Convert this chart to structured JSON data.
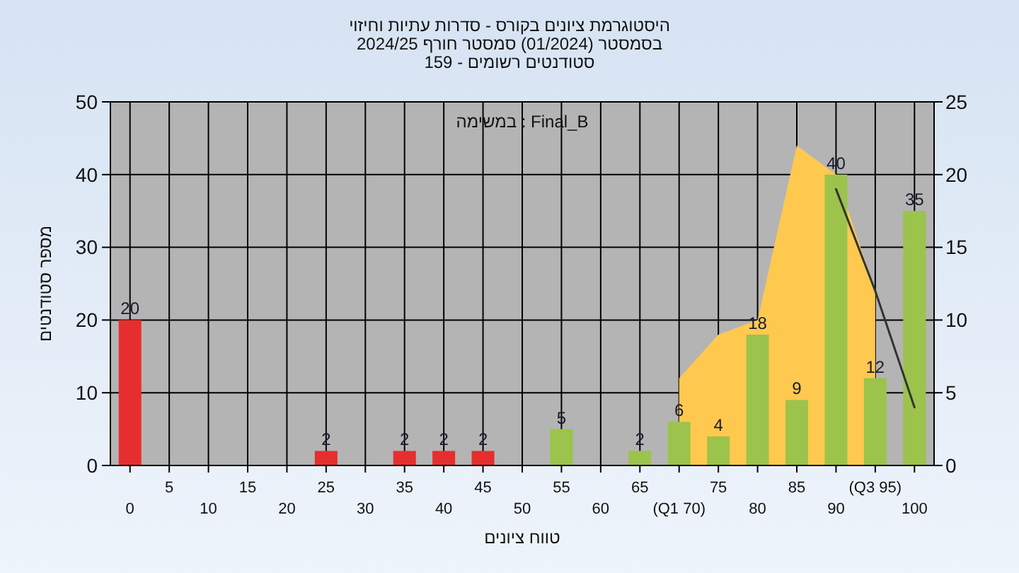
{
  "chart_data": {
    "type": "bar",
    "title": "היסטוגרמת ציונים בקורס - סדרות עתיות וחיזוי",
    "subtitle": "בסמסטר  (01/2024)  סמסטר חורף 2024/25\nסטודנטים רשומים - 159",
    "xlabel": "טווח ציונים",
    "ylabel": "מספר סטודנטים",
    "annotations": [
      "Final_B : במשימה"
    ],
    "categories": [
      "0",
      "5",
      "10",
      "15",
      "20",
      "25",
      "30",
      "35",
      "40",
      "45",
      "50",
      "55",
      "60",
      "65",
      "(Q1 70)",
      "75",
      "80",
      "85",
      "90",
      "(Q3 95)",
      "100"
    ],
    "series": [
      {
        "type": "area",
        "axis": "y2",
        "color": "#ffc94f",
        "values": [
          null,
          null,
          null,
          null,
          null,
          null,
          null,
          null,
          null,
          null,
          null,
          null,
          null,
          null,
          6,
          9,
          10,
          22,
          20,
          12,
          null
        ]
      },
      {
        "value_labels": [
          "20",
          null,
          null,
          null,
          null,
          "2",
          null,
          "2",
          "2",
          "2",
          null,
          "5",
          null,
          "2",
          "6",
          "4",
          "18",
          "9",
          "40",
          "12",
          "35"
        ],
        "colors": [
          "#e62e2e",
          null,
          null,
          null,
          null,
          "#e62e2e",
          null,
          "#e62e2e",
          "#e62e2e",
          "#e62e2e",
          null,
          "#9cc34b",
          null,
          "#9cc34b",
          "#9cc34b",
          "#9cc34b",
          "#9cc34b",
          "#9cc34b",
          "#9cc34b",
          "#9cc34b",
          "#9cc34b"
        ],
        "values": [
          20,
          null,
          null,
          null,
          null,
          2,
          null,
          2,
          2,
          2,
          null,
          5,
          null,
          2,
          6,
          4,
          18,
          9,
          40,
          12,
          35
        ]
      },
      {
        "type": "line",
        "axis": "y2",
        "color": "#333333",
        "values": [
          null,
          null,
          null,
          null,
          null,
          null,
          null,
          null,
          null,
          null,
          null,
          null,
          null,
          null,
          null,
          null,
          null,
          null,
          19,
          12,
          4
        ]
      }
    ],
    "ylim": [
      0,
      50
    ],
    "yticks": [
      0,
      10,
      20,
      30,
      40,
      50
    ],
    "y2lim": [
      0,
      25
    ],
    "y2ticks": [
      0,
      5,
      10,
      15,
      20,
      25
    ],
    "grid": true
  }
}
